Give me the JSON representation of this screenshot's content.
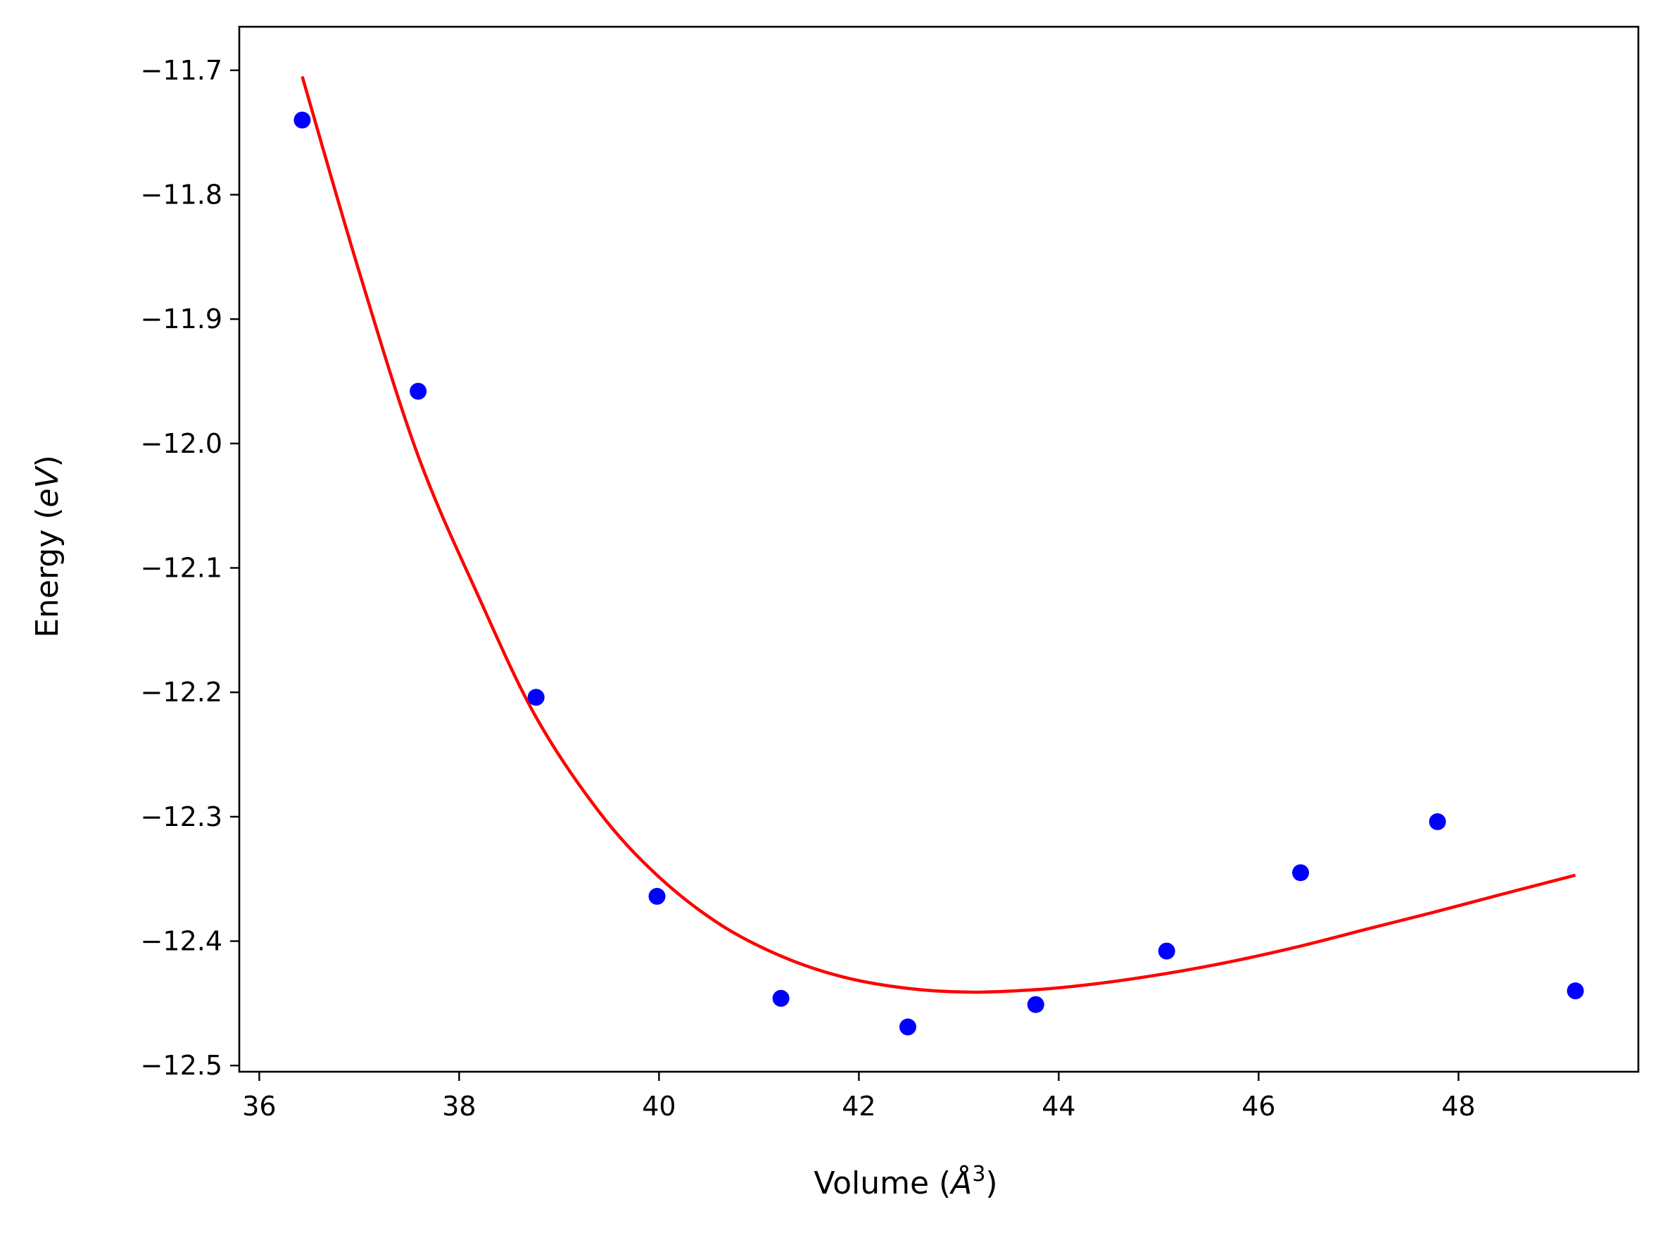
{
  "chart_data": {
    "type": "scatter",
    "title": "",
    "xlabel": "Volume ($\\AA^3$)",
    "ylabel": "Energy ($eV$)",
    "xlabel_parts": {
      "prefix": "Volume (",
      "symbol": "Å",
      "superscript": "3",
      "suffix": ")"
    },
    "ylabel_parts": {
      "prefix": "Energy (",
      "symbol": "eV",
      "suffix": ")"
    },
    "xlim": [
      35.8,
      49.8
    ],
    "ylim": [
      -12.505,
      -11.665
    ],
    "xticks": [
      36,
      38,
      40,
      42,
      44,
      46,
      48
    ],
    "xtick_labels": [
      "36",
      "38",
      "40",
      "42",
      "44",
      "46",
      "48"
    ],
    "yticks": [
      -12.5,
      -12.4,
      -12.3,
      -12.2,
      -12.1,
      -12.0,
      -11.9,
      -11.8,
      -11.7
    ],
    "ytick_labels": [
      "−12.5",
      "−12.4",
      "−12.3",
      "−12.2",
      "−12.1",
      "−12.0",
      "−11.9",
      "−11.8",
      "−11.7"
    ],
    "grid": false,
    "series": [
      {
        "kind": "scatter",
        "color": "#0000ff",
        "x": [
          36.43,
          37.59,
          38.77,
          39.98,
          41.22,
          42.49,
          43.77,
          45.08,
          46.42,
          47.79,
          49.17
        ],
        "y": [
          -11.74,
          -11.958,
          -12.204,
          -12.364,
          -12.446,
          -12.469,
          -12.451,
          -12.408,
          -12.345,
          -12.304,
          -12.44
        ]
      },
      {
        "kind": "line",
        "color": "#ff0000",
        "x": [
          36.43,
          37.0,
          37.59,
          38.2,
          38.77,
          39.4,
          39.98,
          40.6,
          41.22,
          41.85,
          42.49,
          43.1,
          43.77,
          44.4,
          45.08,
          45.75,
          46.42,
          47.1,
          47.79,
          48.45,
          49.17
        ],
        "y": [
          -11.705,
          -11.862,
          -12.01,
          -12.124,
          -12.22,
          -12.296,
          -12.347,
          -12.386,
          -12.412,
          -12.429,
          -12.438,
          -12.441,
          -12.439,
          -12.434,
          -12.426,
          -12.416,
          -12.404,
          -12.39,
          -12.376,
          -12.362,
          -12.347
        ]
      }
    ]
  },
  "colors": {
    "points": "#0000ff",
    "fit_line": "#ff0000",
    "axes": "#000000"
  }
}
